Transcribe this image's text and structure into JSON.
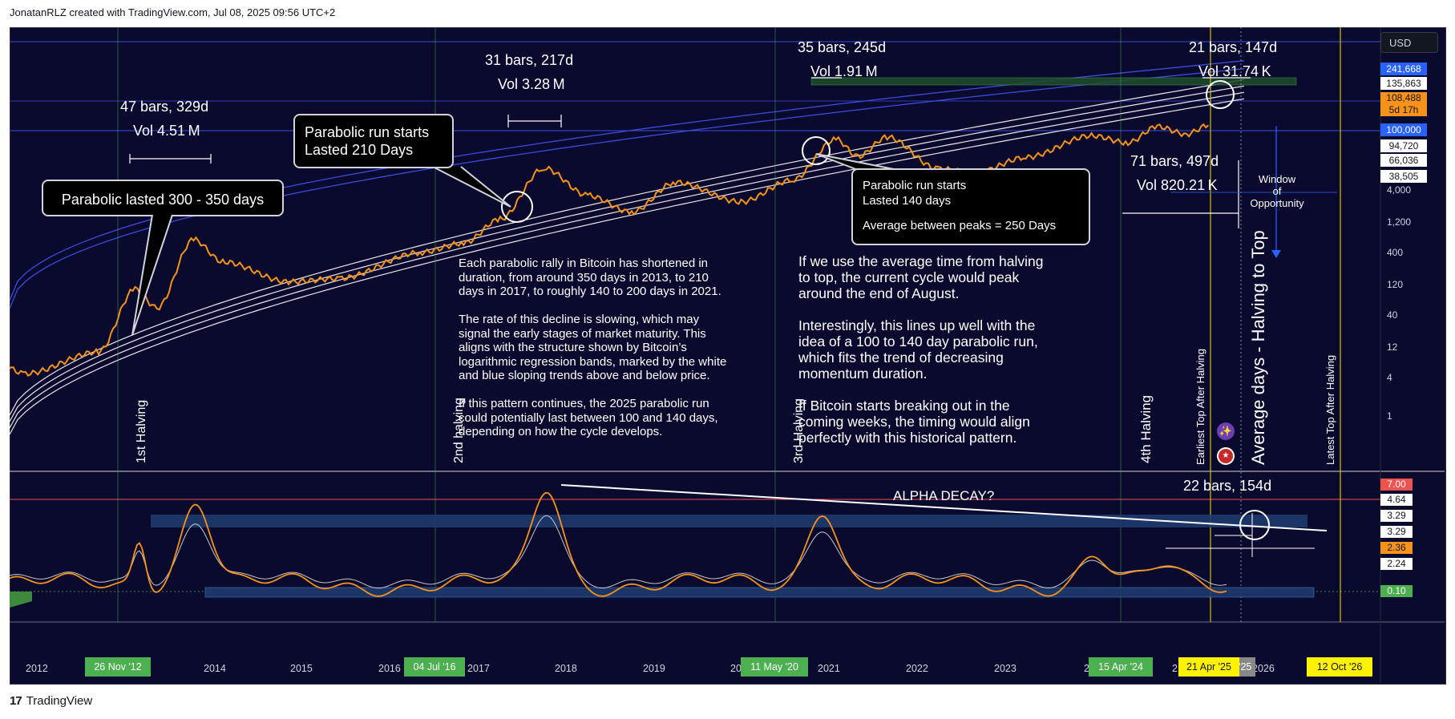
{
  "header": {
    "text": "JonatanRLZ created with TradingView.com, Jul 08, 2025 09:56 UTC+2"
  },
  "footer": {
    "brand": "TradingView"
  },
  "currency_button": "USD",
  "colors": {
    "background": "#0a0a2e",
    "price": "#f7931a",
    "bands_white": "#e8e8e8",
    "bands_blue": "#3b4cdc",
    "halving_line": "#4caf50",
    "top_line": "#d4c200"
  },
  "halvings": [
    {
      "label": "1st Halving",
      "date": "26 Nov '12"
    },
    {
      "label": "2nd halving",
      "date": "04 Jul '16"
    },
    {
      "label": "3rd Halving",
      "date": "11 May '20"
    },
    {
      "label": "4th Halving",
      "date": "15 Apr '24"
    }
  ],
  "vertical_markers": [
    {
      "label": "Earliest Top After Halving",
      "date": "21 Apr '25"
    },
    {
      "label": "Average days - Halving to Top",
      "date": "g '25"
    },
    {
      "label": "Latest Top After Halving",
      "date": "12 Oct '26"
    }
  ],
  "x_axis_years": [
    "2012",
    "2014",
    "2015",
    "2016",
    "2017",
    "2018",
    "2019",
    "20",
    "2021",
    "2022",
    "2023",
    "2",
    "2",
    "2026"
  ],
  "price_axis": [
    "241,668",
    "135,863",
    "108,488",
    "5d 17h",
    "100,000",
    "94,720",
    "66,036",
    "38,505",
    "4,000",
    "1,200",
    "400",
    "120",
    "40",
    "12",
    "4",
    "1"
  ],
  "osc_axis": [
    "7.00",
    "4.64",
    "3.29",
    "3.29",
    "2.36",
    "2.24",
    "0.10"
  ],
  "measures": [
    {
      "bars": "47 bars, 329d",
      "vol": "Vol 4.51 M"
    },
    {
      "bars": "31 bars, 217d",
      "vol": "Vol 3.28 M"
    },
    {
      "bars": "35 bars, 245d",
      "vol": "Vol 1.91 M"
    },
    {
      "bars": "21 bars, 147d",
      "vol": "Vol 31.74 K"
    },
    {
      "bars": "71 bars, 497d",
      "vol": "Vol 820.21 K"
    },
    {
      "bars": "22 bars, 154d",
      "vol": ""
    }
  ],
  "callouts": {
    "c1": "Parabolic lasted 300 - 350 days",
    "c2_line1": "Parabolic run starts",
    "c2_line2": "Lasted 210 Days",
    "c3_line1": "Parabolic run starts",
    "c3_line2": "Lasted 140 days",
    "c3_line3": "Average between peaks = 250 Days",
    "window_line1": "Window",
    "window_line2": "of",
    "window_line3": "Opportunity",
    "alpha": "ALPHA DECAY?"
  },
  "paragraph_left": [
    "Each parabolic rally in Bitcoin has shortened in",
    "duration, from around 350 days in 2013, to 210",
    "days in 2017, to roughly 140 to 200 days in 2021.",
    "",
    "The rate of this decline is slowing, which may",
    "signal the early stages of market maturity. This",
    "aligns with the structure shown by Bitcoin’s",
    "logarithmic regression bands, marked by the white",
    "and blue sloping trends above and below price.",
    "",
    "If this pattern continues, the 2025 parabolic run",
    "could potentially last between 100 and 140 days,",
    "depending on how the cycle develops."
  ],
  "paragraph_right": [
    "If we use the average time from halving",
    "to top, the current cycle would peak",
    "around the end of August.",
    "",
    "Interestingly, this lines up well with the",
    "idea of a 100 to 140 day parabolic run,",
    "which fits the trend of decreasing",
    "momentum duration.",
    "",
    "If Bitcoin starts breaking out in the",
    "coming weeks, the timing would align",
    "perfectly with this historical pattern."
  ],
  "chart_data": {
    "type": "line",
    "log_scale": true,
    "grid": false,
    "series": [
      {
        "name": "",
        "x": [
          "2011-06",
          "2012-01",
          "2012-11",
          "2013-04",
          "2013-07",
          "2013-12",
          "2014-04",
          "2015-01",
          "2015-08",
          "2016-07",
          "2017-01",
          "2017-06",
          "2017-12",
          "2018-06",
          "2018-12",
          "2019-06",
          "2020-03",
          "2020-10",
          "2021-04",
          "2021-07",
          "2021-11",
          "2022-06",
          "2022-11",
          "2023-06",
          "2024-03",
          "2024-08",
          "2024-12",
          "2025-04",
          "2025-07"
        ],
        "values": [
          15,
          5,
          12,
          150,
          70,
          1100,
          450,
          200,
          230,
          650,
          950,
          2500,
          19500,
          6500,
          3300,
          11000,
          5000,
          12000,
          62000,
          31000,
          68000,
          19000,
          16000,
          30000,
          72000,
          54000,
          104000,
          76000,
          109000
        ]
      }
    ]
  }
}
